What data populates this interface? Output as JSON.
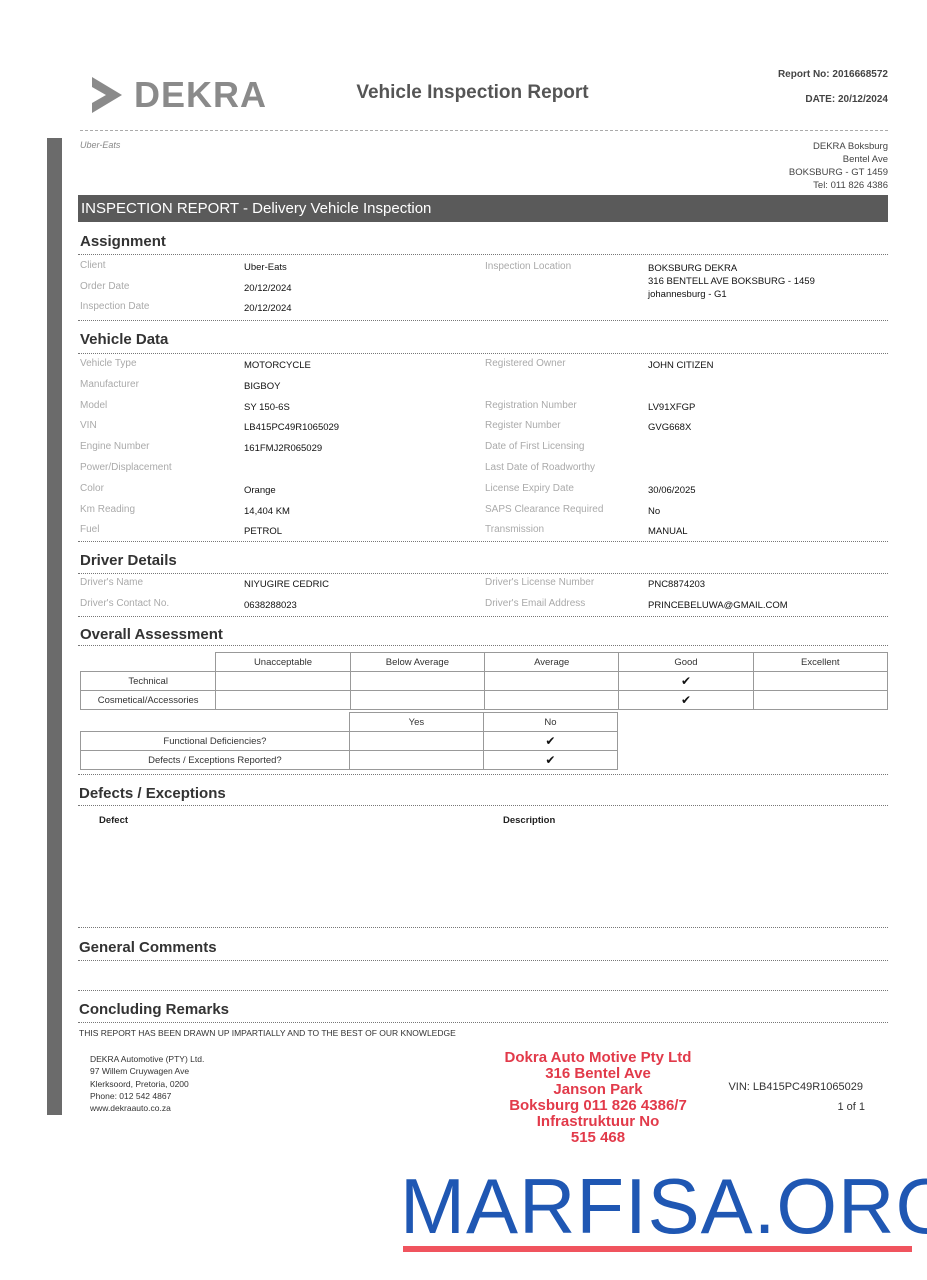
{
  "header": {
    "logo_text": "DEKRA",
    "title": "Vehicle Inspection Report",
    "report_no": "Report No: 2016668572",
    "date": "DATE: 20/12/2024",
    "client_tag": "Uber-Eats",
    "branch": [
      "DEKRA Boksburg",
      "Bentel Ave",
      "BOKSBURG - GT 1459",
      "Tel: 011 826 4386"
    ]
  },
  "banner": "INSPECTION REPORT - Delivery Vehicle Inspection",
  "assignment": {
    "heading": "Assignment",
    "left": [
      {
        "label": "Client",
        "value": "Uber-Eats"
      },
      {
        "label": "Order Date",
        "value": "20/12/2024"
      },
      {
        "label": "Inspection Date",
        "value": "20/12/2024"
      }
    ],
    "location_label": "Inspection Location",
    "location_value": [
      "BOKSBURG DEKRA",
      "316 BENTELL AVE BOKSBURG - 1459",
      "johannesburg - G1"
    ]
  },
  "vehicle": {
    "heading": "Vehicle Data",
    "left": [
      {
        "label": "Vehicle Type",
        "value": "MOTORCYCLE"
      },
      {
        "label": "Manufacturer",
        "value": "BIGBOY"
      },
      {
        "label": "Model",
        "value": "SY 150-6S"
      },
      {
        "label": "VIN",
        "value": "LB415PC49R1065029"
      },
      {
        "label": "Engine Number",
        "value": "161FMJ2R065029"
      },
      {
        "label": "Power/Displacement",
        "value": ""
      },
      {
        "label": "Color",
        "value": "Orange"
      },
      {
        "label": "Km Reading",
        "value": "14,404  KM"
      },
      {
        "label": "Fuel",
        "value": "PETROL"
      }
    ],
    "right": [
      {
        "label": "Registered Owner",
        "value": "JOHN CITIZEN"
      },
      {
        "label": "",
        "value": ""
      },
      {
        "label": "Registration Number",
        "value": "LV91XFGP"
      },
      {
        "label": "Register Number",
        "value": "GVG668X"
      },
      {
        "label": "Date of First Licensing",
        "value": ""
      },
      {
        "label": "Last Date of Roadworthy",
        "value": ""
      },
      {
        "label": "License Expiry Date",
        "value": "30/06/2025"
      },
      {
        "label": "SAPS Clearance Required",
        "value": "No"
      },
      {
        "label": "Transmission",
        "value": "MANUAL"
      }
    ]
  },
  "driver": {
    "heading": "Driver Details",
    "left": [
      {
        "label": "Driver's Name",
        "value": "NIYUGIRE CEDRIC"
      },
      {
        "label": "Driver's Contact No.",
        "value": "0638288023"
      }
    ],
    "right": [
      {
        "label": "Driver's License Number",
        "value": "PNC8874203"
      },
      {
        "label": "Driver's Email Address",
        "value": "PRINCEBELUWA@GMAIL.COM"
      }
    ]
  },
  "assessment": {
    "heading": "Overall Assessment",
    "columns": [
      "Unacceptable",
      "Below Average",
      "Average",
      "Good",
      "Excellent"
    ],
    "rows": [
      {
        "label": "Technical",
        "selected": "Good"
      },
      {
        "label": "Cosmetical/Accessories",
        "selected": "Good"
      }
    ],
    "yn_columns": [
      "Yes",
      "No"
    ],
    "yn_rows": [
      {
        "label": "Functional Deficiencies?",
        "selected": "No"
      },
      {
        "label": "Defects / Exceptions Reported?",
        "selected": "No"
      }
    ],
    "check_glyph": "✔"
  },
  "defects": {
    "heading": "Defects / Exceptions",
    "col_defect": "Defect",
    "col_description": "Description"
  },
  "comments": {
    "heading": "General Comments"
  },
  "remarks": {
    "heading": "Concluding Remarks",
    "text": "THIS REPORT HAS BEEN DRAWN UP IMPARTIALLY AND TO THE BEST OF OUR KNOWLEDGE"
  },
  "footer": {
    "address": [
      "DEKRA Automotive (PTY) Ltd.",
      "97 Willem Cruywagen Ave",
      "Klerksoord, Pretoria, 0200",
      "Phone: 012 542 4867",
      "www.dekraauto.co.za"
    ],
    "vin": "VIN: LB415PC49R1065029",
    "page": "1 of 1"
  },
  "stamp": [
    "Dokra Auto Motive Pty Ltd",
    "316 Bentel Ave",
    "Janson Park",
    "Boksburg 011 826 4386/7",
    "Infrastruktuur No",
    "515 468"
  ],
  "watermark": "MARFISA.ORG",
  "colors": {
    "banner": "#5a5a5a",
    "watermark": "#1f57b3",
    "watermark_line": "#f0545e",
    "stamp": "#e23a4a"
  }
}
